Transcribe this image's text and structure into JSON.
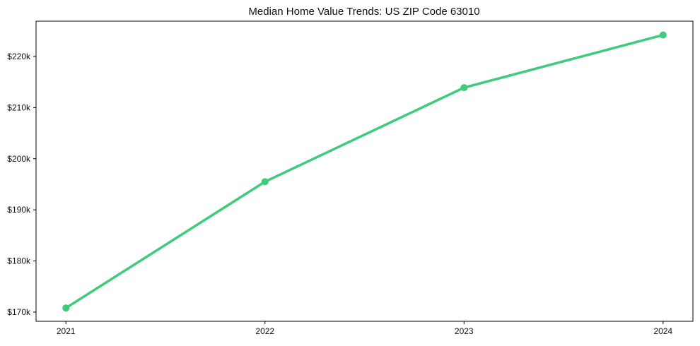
{
  "chart_data": {
    "type": "line",
    "title": "Median Home Value Trends: US ZIP Code 63010",
    "x": [
      2021,
      2022,
      2023,
      2024
    ],
    "values": [
      170800,
      195500,
      213900,
      224200
    ],
    "x_tick_labels": [
      "2021",
      "2022",
      "2023",
      "2024"
    ],
    "y_tick_labels": [
      "$170k",
      "$180k",
      "$190k",
      "$200k",
      "$210k",
      "$220k"
    ],
    "y_tick_values": [
      170000,
      180000,
      190000,
      200000,
      210000,
      220000
    ],
    "xlim": [
      2020.85,
      2024.15
    ],
    "ylim": [
      168200,
      226900
    ],
    "grid": false,
    "legend": false,
    "marker": "circle",
    "line_color": "#3ecb7b",
    "axis_color": "#000000",
    "text_color": "#111111",
    "background": "#ffffff"
  }
}
